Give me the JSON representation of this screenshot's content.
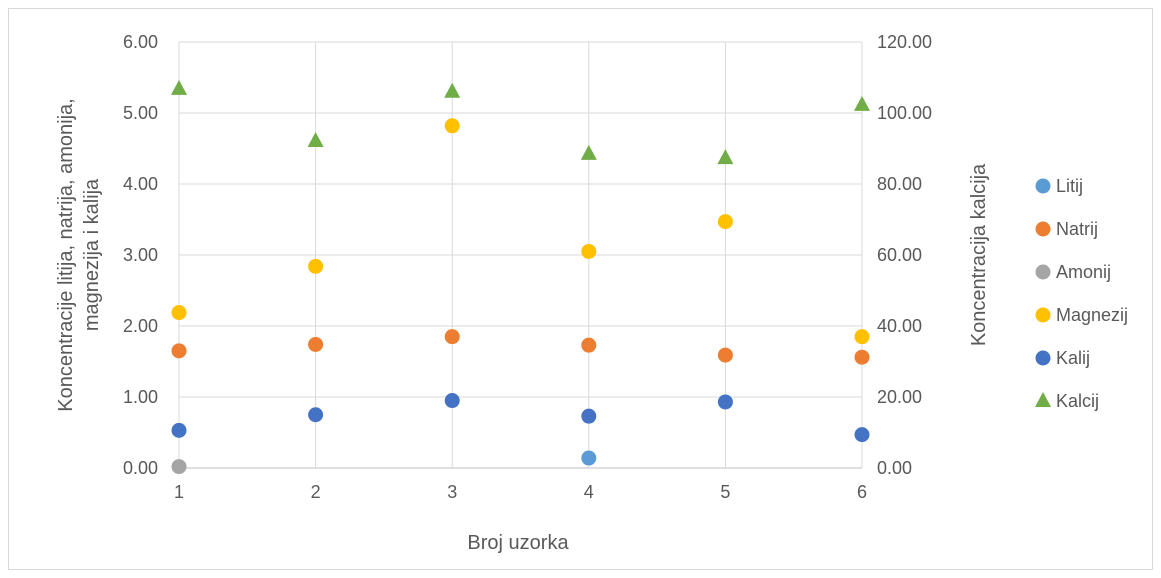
{
  "chart_data": {
    "type": "scatter",
    "xlabel": "Broj uzorka",
    "ylabel_left": [
      "Koncentracije litija, natrija, amonija,",
      "magnezija i kalija"
    ],
    "ylabel_right": "Koncentracija kalcija",
    "xlim": [
      1,
      6
    ],
    "ylim_left": [
      0,
      6
    ],
    "ylim_right": [
      0,
      120
    ],
    "x_ticks": [
      "1",
      "2",
      "3",
      "4",
      "5",
      "6"
    ],
    "y_left_ticks": [
      "0.00",
      "1.00",
      "2.00",
      "3.00",
      "4.00",
      "5.00",
      "6.00"
    ],
    "y_right_ticks": [
      "0.00",
      "20.00",
      "40.00",
      "60.00",
      "80.00",
      "100.00",
      "120.00"
    ],
    "grid": true,
    "legend_position": "right",
    "series": [
      {
        "name": "Litij",
        "color": "#5B9BD5",
        "marker": "circle",
        "axis": "left",
        "x": [
          4
        ],
        "y": [
          0.14
        ]
      },
      {
        "name": "Natrij",
        "color": "#ED7D31",
        "marker": "circle",
        "axis": "left",
        "x": [
          1,
          2,
          3,
          4,
          5,
          6
        ],
        "y": [
          1.65,
          1.74,
          1.85,
          1.73,
          1.59,
          1.56
        ]
      },
      {
        "name": "Amonij",
        "color": "#A5A5A5",
        "marker": "circle",
        "axis": "left",
        "x": [
          1
        ],
        "y": [
          0.02
        ]
      },
      {
        "name": "Magnezij",
        "color": "#FFC000",
        "marker": "circle",
        "axis": "left",
        "x": [
          1,
          2,
          3,
          4,
          5,
          6
        ],
        "y": [
          2.19,
          2.84,
          4.82,
          3.05,
          3.47,
          1.85
        ]
      },
      {
        "name": "Kalij",
        "color": "#4472C4",
        "marker": "circle",
        "axis": "left",
        "x": [
          1,
          2,
          3,
          4,
          5,
          6
        ],
        "y": [
          0.53,
          0.75,
          0.95,
          0.73,
          0.93,
          0.47
        ]
      },
      {
        "name": "Kalcij",
        "color": "#70AD47",
        "marker": "triangle",
        "axis": "right",
        "x": [
          1,
          2,
          3,
          4,
          5,
          6
        ],
        "y": [
          106.8,
          92.1,
          106.0,
          88.5,
          87.3,
          102.3
        ]
      }
    ]
  }
}
